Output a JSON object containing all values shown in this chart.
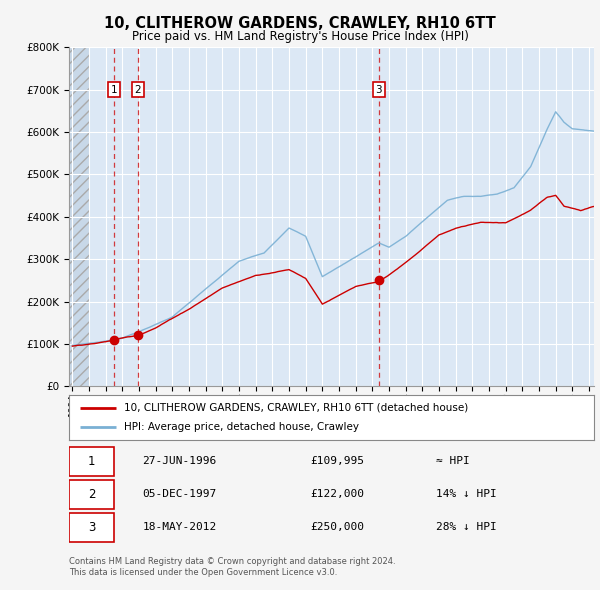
{
  "title": "10, CLITHEROW GARDENS, CRAWLEY, RH10 6TT",
  "subtitle": "Price paid vs. HM Land Registry's House Price Index (HPI)",
  "legend_line1": "10, CLITHEROW GARDENS, CRAWLEY, RH10 6TT (detached house)",
  "legend_line2": "HPI: Average price, detached house, Crawley",
  "footer_line1": "Contains HM Land Registry data © Crown copyright and database right 2024.",
  "footer_line2": "This data is licensed under the Open Government Licence v3.0.",
  "sale_dates_display": [
    "27-JUN-1996",
    "05-DEC-1997",
    "18-MAY-2012"
  ],
  "sale_prices_display": [
    "£109,995",
    "£122,000",
    "£250,000"
  ],
  "sale_hpi_rel": [
    "≈ HPI",
    "14% ↓ HPI",
    "28% ↓ HPI"
  ],
  "sale_years": [
    1996.49,
    1997.92,
    2012.38
  ],
  "sale_prices": [
    109995,
    122000,
    250000
  ],
  "ylim": [
    0,
    800000
  ],
  "xlim_start": 1993.8,
  "xlim_end": 2025.3,
  "red_color": "#cc0000",
  "blue_color": "#7ab0d4",
  "chart_bg": "#dce8f5",
  "fig_bg": "#f5f5f5",
  "sale_box_color": "#cc0000",
  "hatch_end": 1995.0
}
